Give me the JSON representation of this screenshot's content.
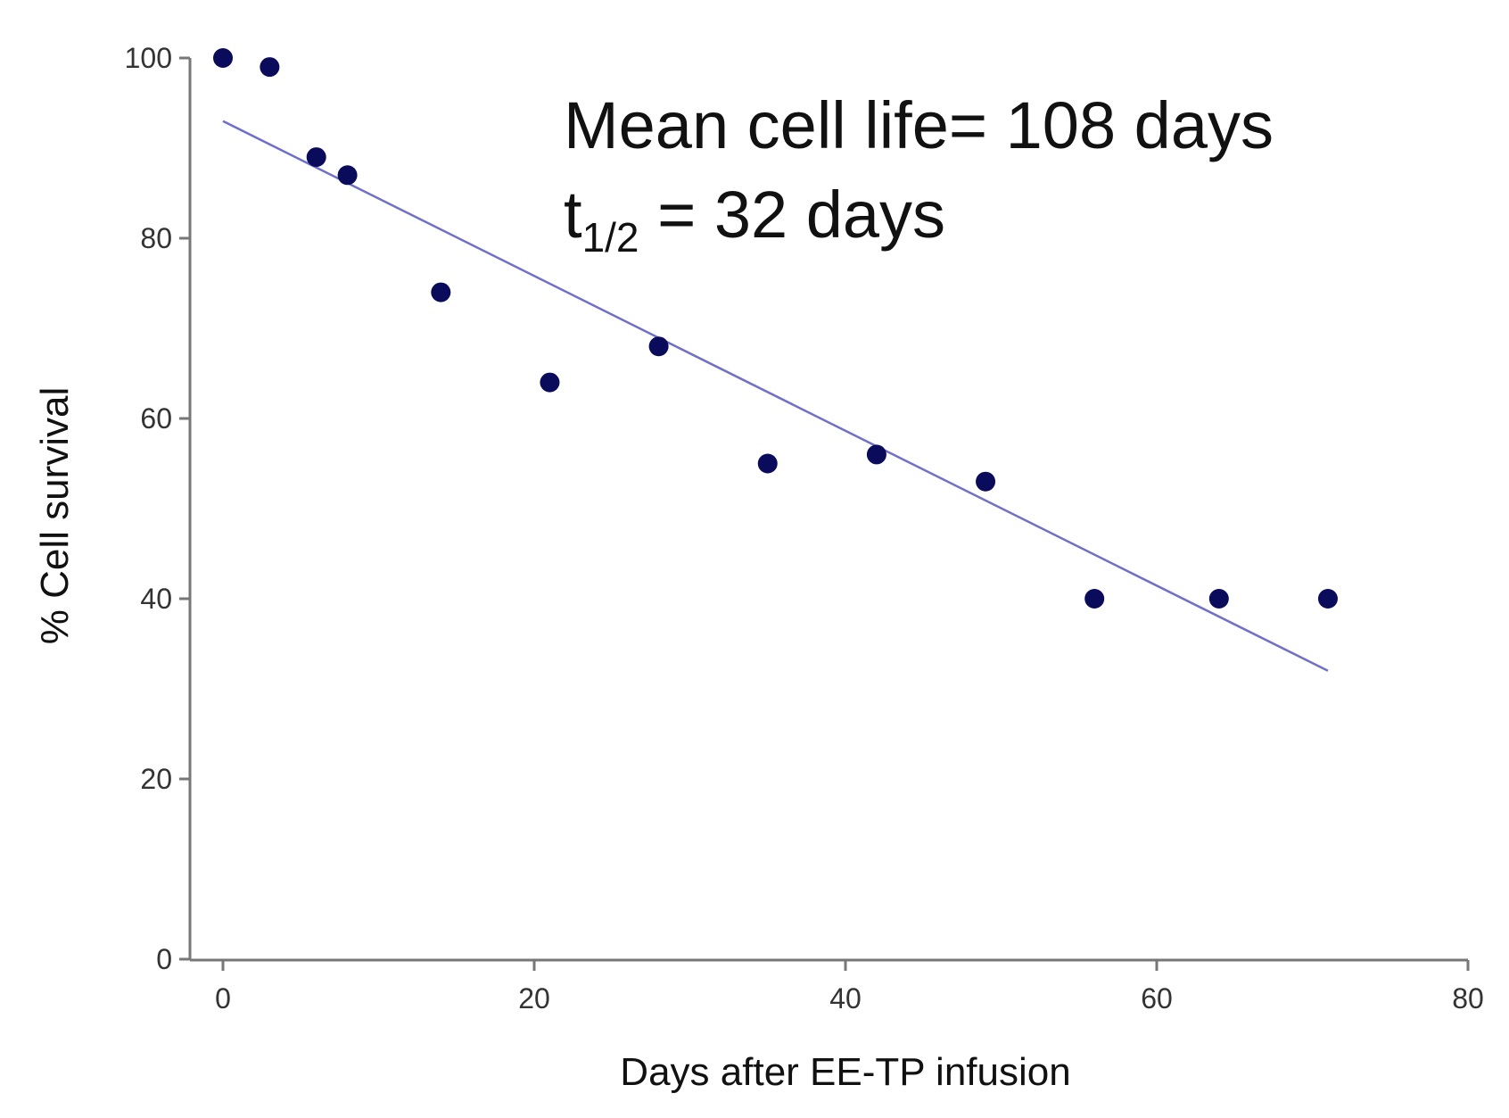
{
  "chart_data": {
    "type": "scatter",
    "xlabel": "Days after EE-TP infusion",
    "ylabel": "% Cell survival",
    "xlim": [
      0,
      80
    ],
    "ylim": [
      0,
      100
    ],
    "x_ticks": [
      "0",
      "20",
      "40",
      "60",
      "80"
    ],
    "y_ticks": [
      "0",
      "20",
      "40",
      "60",
      "80",
      "100"
    ],
    "grid": false,
    "legend": "none",
    "series": [
      {
        "name": "Cell survival",
        "color": "#0b0b5c",
        "points": [
          {
            "x": 0,
            "y": 100
          },
          {
            "x": 3,
            "y": 99
          },
          {
            "x": 6,
            "y": 89
          },
          {
            "x": 8,
            "y": 87
          },
          {
            "x": 14,
            "y": 74
          },
          {
            "x": 21,
            "y": 64
          },
          {
            "x": 28,
            "y": 68
          },
          {
            "x": 35,
            "y": 55
          },
          {
            "x": 42,
            "y": 56
          },
          {
            "x": 49,
            "y": 53
          },
          {
            "x": 56,
            "y": 40
          },
          {
            "x": 64,
            "y": 40
          },
          {
            "x": 71,
            "y": 40
          }
        ]
      }
    ],
    "trendline": {
      "type": "linear",
      "color": "#7070c8",
      "x_start": 0,
      "y_start": 93,
      "x_end": 71,
      "y_end": 32
    },
    "annotations": {
      "line1": "Mean  cell life= 108 days",
      "line2_main": "t",
      "line2_subscript": "1/2",
      "line2_rest": " = 32 days"
    }
  }
}
